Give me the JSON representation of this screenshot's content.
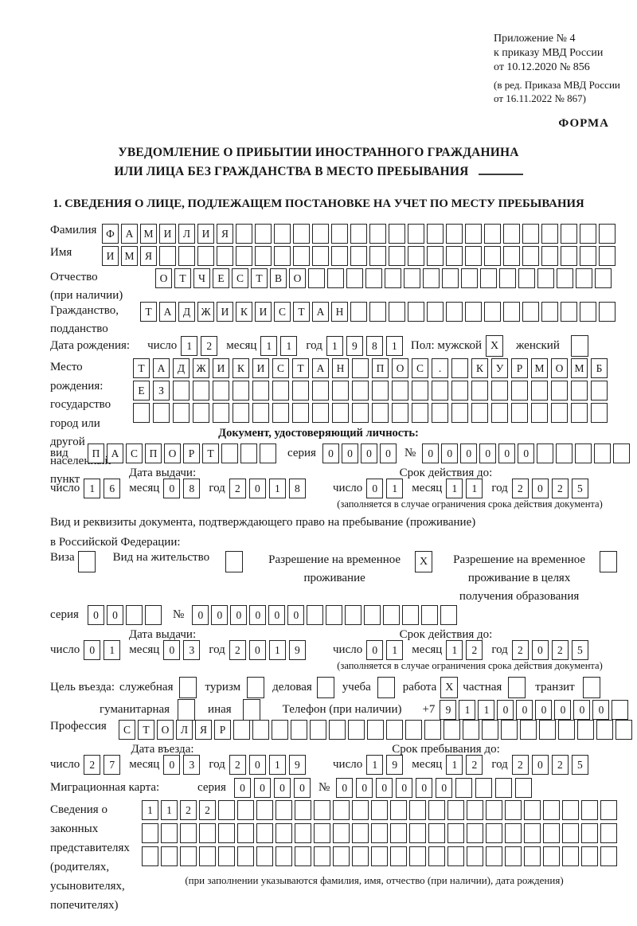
{
  "header": {
    "ref_lines": [
      "Приложение № 4",
      "к приказу МВД России",
      "от 10.12.2020 № 856"
    ],
    "amend_lines": [
      "(в ред. Приказа МВД России",
      "от 16.11.2022 № 867)"
    ],
    "form_label": "ФОРМА"
  },
  "title": {
    "line1": "УВЕДОМЛЕНИЕ О ПРИБЫТИИ ИНОСТРАННОГО ГРАЖДАНИНА",
    "line2": "ИЛИ ЛИЦА БЕЗ ГРАЖДАНСТВА В МЕСТО ПРЕБЫВАНИЯ"
  },
  "section1_heading": "1. СВЕДЕНИЯ О ЛИЦЕ, ПОДЛЕЖАЩЕМ ПОСТАНОВКЕ НА УЧЕТ ПО МЕСТУ ПРЕБЫВАНИЯ",
  "fields": {
    "surname": {
      "label": "Фамилия",
      "value": "ФАМИЛИЯ",
      "count": 27
    },
    "given_name": {
      "label": "Имя",
      "value": "ИМЯ",
      "count": 27
    },
    "patronymic": {
      "label": "Отчество",
      "label2": "(при наличии)",
      "value": "ОТЧЕСТВО",
      "count": 24
    },
    "citizenship": {
      "label": "Гражданство,",
      "label2": "подданство",
      "value": "ТАДЖИКИСТАН",
      "count": 25
    },
    "birth_date": {
      "label": "Дата рождения:",
      "day_label": "число",
      "day": {
        "value": "12",
        "count": 2
      },
      "month_label": "месяц",
      "month": {
        "value": "11",
        "count": 2
      },
      "year_label": "год",
      "year": {
        "value": "1981",
        "count": 4
      },
      "sex_label": "Пол: мужской",
      "male_checked": true,
      "female_label": "женский",
      "female_checked": false
    },
    "birth_place": {
      "label_lines": [
        "Место рождения:",
        "государство",
        "город или другой",
        "населенный пункт"
      ],
      "rows": [
        {
          "value": "ТАДЖИКИСТАН ПОС. КУРМОМБ",
          "count": 24
        },
        {
          "value": "ЕЗ",
          "count": 24
        },
        {
          "value": "",
          "count": 24
        }
      ]
    }
  },
  "identity_doc": {
    "heading": "Документ, удостоверяющий личность:",
    "type_label": "вид",
    "type": {
      "value": "ПАСПОРТ",
      "count": 10
    },
    "series_label": "серия",
    "series": {
      "value": "0000",
      "count": 4
    },
    "number_label": "№",
    "number": {
      "value": "000000",
      "count": 11
    },
    "issue_heading": "Дата выдачи:",
    "issue": {
      "day_label": "число",
      "day": {
        "value": "16",
        "count": 2
      },
      "month_label": "месяц",
      "month": {
        "value": "08",
        "count": 2
      },
      "year_label": "год",
      "year": {
        "value": "2018",
        "count": 4
      }
    },
    "expiry_heading": "Срок действия до:",
    "expiry": {
      "day_label": "число",
      "day": {
        "value": "01",
        "count": 2
      },
      "month_label": "месяц",
      "month": {
        "value": "11",
        "count": 2
      },
      "year_label": "год",
      "year": {
        "value": "2025",
        "count": 4
      }
    },
    "note": "(заполняется в случае ограничения срока действия документа)"
  },
  "residence_doc": {
    "heading1": "Вид и реквизиты документа, подтверждающего право на пребывание (проживание)",
    "heading2": "в Российской Федерации:",
    "options": [
      {
        "label": "Виза",
        "checked": false
      },
      {
        "label": "Вид на жительство",
        "checked": false
      },
      {
        "lines": [
          "Разрешение на временное",
          "проживание"
        ],
        "checked": true
      },
      {
        "lines": [
          "Разрешение на временное",
          "проживание в целях",
          "получения образования"
        ],
        "checked": false
      }
    ],
    "series_label": "серия",
    "series": {
      "value": "00",
      "count": 4
    },
    "number_label": "№",
    "number": {
      "value": "000000",
      "count": 14
    },
    "issue_heading": "Дата выдачи:",
    "issue": {
      "day_label": "число",
      "day": {
        "value": "01",
        "count": 2
      },
      "month_label": "месяц",
      "month": {
        "value": "03",
        "count": 2
      },
      "year_label": "год",
      "year": {
        "value": "2019",
        "count": 4
      }
    },
    "expiry_heading": "Срок действия до:",
    "expiry": {
      "day_label": "число",
      "day": {
        "value": "01",
        "count": 2
      },
      "month_label": "месяц",
      "month": {
        "value": "12",
        "count": 2
      },
      "year_label": "год",
      "year": {
        "value": "2025",
        "count": 4
      }
    },
    "note": "(заполняется в случае ограничения срока действия документа)"
  },
  "visit": {
    "label": "Цель въезда:",
    "options_row1": [
      {
        "label": "служебная",
        "checked": false
      },
      {
        "label": "туризм",
        "checked": false
      },
      {
        "label": "деловая",
        "checked": false
      },
      {
        "label": "учеба",
        "checked": false
      },
      {
        "label": "работа",
        "checked": true
      },
      {
        "label": "частная",
        "checked": false
      },
      {
        "label": "транзит",
        "checked": false
      }
    ],
    "options_row2": [
      {
        "label": "гуманитарная",
        "checked": false
      },
      {
        "label": "иная",
        "checked": false
      }
    ],
    "phone_label": "Телефон (при наличии)",
    "phone_prefix": "+7",
    "phone": {
      "value": "911000000",
      "count": 10
    }
  },
  "profession": {
    "label": "Профессия",
    "value": "СТОЛЯР",
    "count": 27
  },
  "entry": {
    "date_heading": "Дата въезда:",
    "date": {
      "day_label": "число",
      "day": {
        "value": "27",
        "count": 2
      },
      "month_label": "месяц",
      "month": {
        "value": "03",
        "count": 2
      },
      "year_label": "год",
      "year": {
        "value": "2019",
        "count": 4
      }
    },
    "stay_heading": "Срок пребывания до:",
    "stay": {
      "day_label": "число",
      "day": {
        "value": "19",
        "count": 2
      },
      "month_label": "месяц",
      "month": {
        "value": "12",
        "count": 2
      },
      "year_label": "год",
      "year": {
        "value": "2025",
        "count": 4
      }
    }
  },
  "migration_card": {
    "label": "Миграционная карта:",
    "series_label": "серия",
    "series": {
      "value": "0000",
      "count": 4
    },
    "number_label": "№",
    "number": {
      "value": "000000",
      "count": 10
    }
  },
  "representatives": {
    "label_lines": [
      "Сведения о",
      "законных",
      "представителях",
      "(родителях,",
      "усыновителях,",
      "попечителях)"
    ],
    "rows": [
      {
        "value": "1122",
        "count": 25
      },
      {
        "value": "",
        "count": 25
      },
      {
        "value": "",
        "count": 25
      }
    ],
    "note": "(при заполнении указываются фамилия, имя, отчество (при наличии), дата рождения)"
  }
}
